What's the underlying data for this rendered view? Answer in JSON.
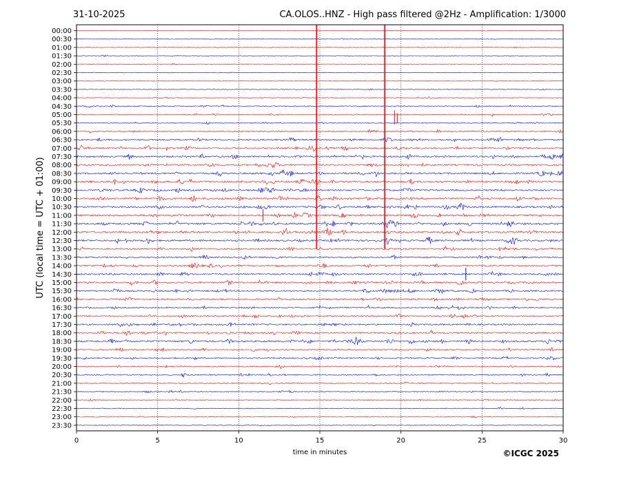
{
  "header": {
    "date": "31-10-2025",
    "station_title": "CA.OLOS..HNZ - High pass filtered @2Hz - Amplification: 1/3000"
  },
  "footer": {
    "copyright": "©ICGC 2025"
  },
  "chart_data": {
    "type": "line",
    "title": "CA.OLOS..HNZ - High pass filtered @2Hz - Amplification: 1/3000",
    "xlabel": "time in minutes",
    "ylabel": "UTC (local time = UTC + 01:00)",
    "xlim": [
      0,
      30
    ],
    "x_ticks": [
      "0",
      "5",
      "10",
      "15",
      "20",
      "25",
      "30"
    ],
    "grid": "vertical dotted lines every 5 minutes",
    "line_colors": [
      "#ff0000",
      "#0000ff"
    ],
    "rows": [
      "00:00",
      "00:30",
      "01:00",
      "01:30",
      "02:00",
      "02:30",
      "03:00",
      "03:30",
      "04:00",
      "04:30",
      "05:00",
      "05:30",
      "06:00",
      "06:30",
      "07:00",
      "07:30",
      "08:00",
      "08:30",
      "09:00",
      "09:30",
      "10:00",
      "10:30",
      "11:00",
      "11:30",
      "12:00",
      "12:30",
      "13:00",
      "13:30",
      "14:00",
      "14:30",
      "15:00",
      "15:30",
      "16:00",
      "16:30",
      "17:00",
      "17:30",
      "18:00",
      "18:30",
      "19:00",
      "19:30",
      "20:00",
      "20:30",
      "21:00",
      "21:30",
      "22:00",
      "22:30",
      "23:00",
      "23:30"
    ],
    "activity": [
      0.05,
      0.05,
      0.05,
      0.05,
      0.05,
      0.05,
      0.05,
      0.08,
      0.12,
      0.25,
      0.25,
      0.2,
      0.35,
      0.55,
      0.6,
      0.65,
      0.6,
      0.7,
      0.7,
      0.65,
      0.75,
      0.7,
      0.75,
      0.8,
      0.8,
      0.7,
      0.55,
      0.5,
      0.5,
      0.6,
      0.6,
      0.6,
      0.55,
      0.45,
      0.5,
      0.55,
      0.55,
      0.7,
      0.45,
      0.4,
      0.35,
      0.35,
      0.25,
      0.25,
      0.2,
      0.15,
      0.1,
      0.08
    ],
    "events": [
      {
        "row": "00:00",
        "minute": 14.8,
        "type": "earthquake"
      },
      {
        "row": "00:00",
        "minute": 19.0,
        "type": "earthquake"
      },
      {
        "row": "05:00",
        "minute": 19.6,
        "type": "earthquake"
      },
      {
        "row": "11:00",
        "minute": 11.5,
        "type": "spike"
      },
      {
        "row": "14:30",
        "minute": 24.0,
        "type": "spike"
      }
    ]
  }
}
